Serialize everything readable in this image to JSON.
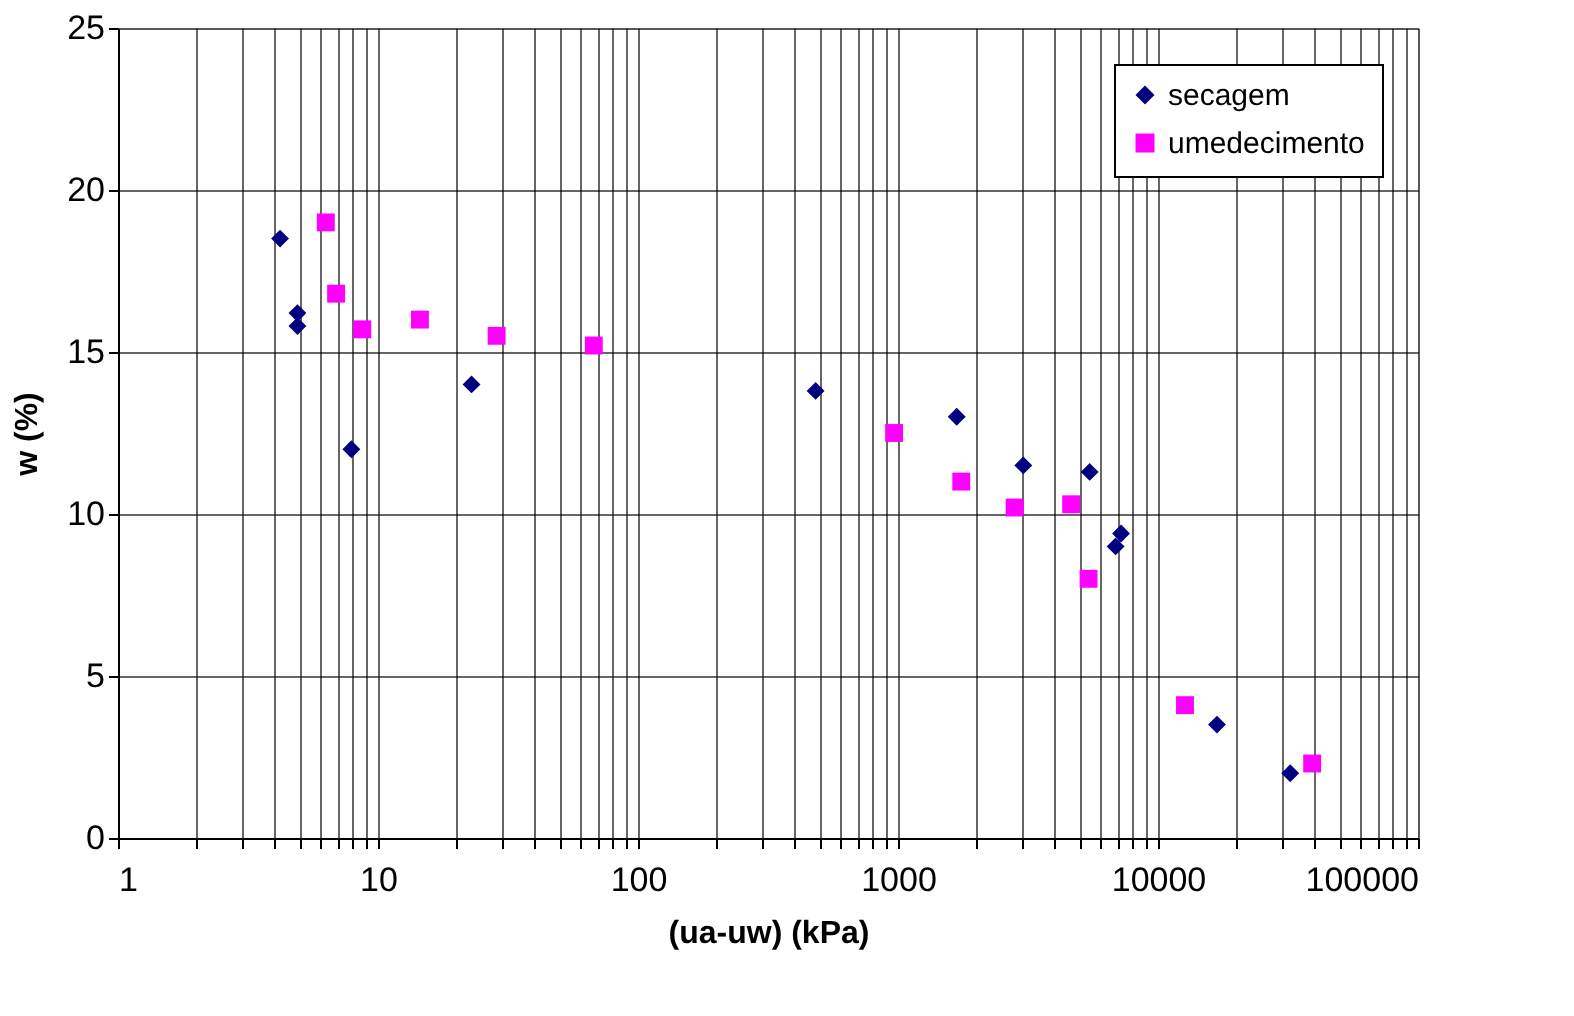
{
  "chart_data": {
    "type": "scatter",
    "xlabel": "(ua-uw) (kPa)",
    "ylabel": "w (%)",
    "log": "x",
    "xlim": [
      1,
      100000
    ],
    "xticks": [
      1,
      10,
      100,
      1000,
      10000,
      100000
    ],
    "ylim": [
      0,
      25
    ],
    "yticks": [
      0,
      5,
      10,
      15,
      20,
      25
    ],
    "grid": true,
    "legend": "top right",
    "series": [
      {
        "name": "secagem",
        "color": "#000080",
        "marker": "diamond",
        "x": [
          4.2,
          4.9,
          4.9,
          7.9,
          22.9,
          482,
          1682,
          3033,
          5460,
          7210,
          6870,
          16860,
          32250
        ],
        "values": [
          18.5,
          16.2,
          15.8,
          12.0,
          14.0,
          13.8,
          13.0,
          11.5,
          11.3,
          9.4,
          9.0,
          3.5,
          2.0
        ]
      },
      {
        "name": "umedecimento",
        "color": "#ff00ff",
        "marker": "square",
        "x": [
          6.3,
          6.9,
          8.7,
          14.5,
          28.6,
          67.6,
          966,
          1751,
          2810,
          4634,
          5406,
          12700,
          39170
        ],
        "values": [
          19.0,
          16.8,
          15.7,
          16.0,
          15.5,
          15.2,
          12.5,
          11.0,
          10.2,
          10.3,
          8.0,
          4.1,
          2.3
        ]
      }
    ]
  }
}
